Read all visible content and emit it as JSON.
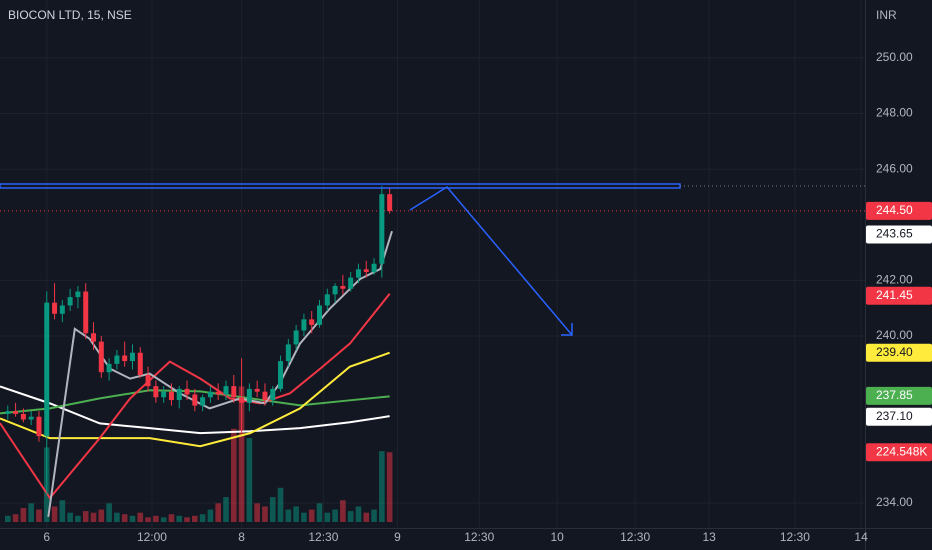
{
  "chart_data": {
    "type": "candlestick",
    "title": "BIOCON LTD, 15, NSE",
    "currency": "INR",
    "up_color": "#089981",
    "down_color": "#f23645",
    "xlim": [
      -1,
      110
    ],
    "xticks": [
      {
        "value": 5,
        "label": "6"
      },
      {
        "value": 18.5,
        "label": "12:00"
      },
      {
        "value": 30,
        "label": "8"
      },
      {
        "value": 40.5,
        "label": "12:30"
      },
      {
        "value": 50,
        "label": "9"
      },
      {
        "value": 60.5,
        "label": "12:30"
      },
      {
        "value": 70.5,
        "label": "10"
      },
      {
        "value": 80.5,
        "label": "12:30"
      },
      {
        "value": 90,
        "label": "13"
      },
      {
        "value": 101,
        "label": "12:30"
      },
      {
        "value": 109.5,
        "label": "14"
      }
    ],
    "ylim": [
      233.1,
      252.08
    ],
    "yticks": [
      {
        "value": 250,
        "label": "250.00"
      },
      {
        "value": 248,
        "label": "248.00"
      },
      {
        "value": 246,
        "label": "246.00"
      },
      {
        "value": 242,
        "label": "242.00"
      },
      {
        "value": 240,
        "label": "240.00"
      },
      {
        "value": 234,
        "label": "234.00"
      }
    ],
    "grid": true,
    "open": [
      237.2,
      237.3,
      237.2,
      237.0,
      237.1,
      236.4,
      241.2,
      240.8,
      241.1,
      241.4,
      241.6,
      240.1,
      239.8,
      238.7,
      239.0,
      239.3,
      239.1,
      239.4,
      238.6,
      238.2,
      237.8,
      238.0,
      237.7,
      238.1,
      237.9,
      237.5,
      237.8,
      238.0,
      237.9,
      238.2,
      237.8,
      237.6,
      238.1,
      238.0,
      237.7,
      238.1,
      239.1,
      239.7,
      240.2,
      240.6,
      240.4,
      241.1,
      241.5,
      241.8,
      241.7,
      242.1,
      242.4,
      242.3,
      242.6,
      245.1
    ],
    "high": [
      237.5,
      237.6,
      237.4,
      237.3,
      237.3,
      241.6,
      241.9,
      241.3,
      241.7,
      241.8,
      241.9,
      240.5,
      240.0,
      239.2,
      239.5,
      239.8,
      239.7,
      239.6,
      238.9,
      238.4,
      238.2,
      238.3,
      238.2,
      238.4,
      238.1,
      237.9,
      238.2,
      238.3,
      238.4,
      238.6,
      239.2,
      238.3,
      238.4,
      238.3,
      238.2,
      239.3,
      239.9,
      240.4,
      240.8,
      240.9,
      241.3,
      241.7,
      241.9,
      242.2,
      242.3,
      242.6,
      242.7,
      242.8,
      245.4,
      245.35
    ],
    "low": [
      237.0,
      237.1,
      236.9,
      236.8,
      236.2,
      234.3,
      240.6,
      240.5,
      240.9,
      241.0,
      239.9,
      239.5,
      238.5,
      238.4,
      238.8,
      238.9,
      238.8,
      238.5,
      238.0,
      237.6,
      237.6,
      237.5,
      237.4,
      237.7,
      237.3,
      237.3,
      237.6,
      237.7,
      237.7,
      237.6,
      236.5,
      237.3,
      237.8,
      237.5,
      237.5,
      238.0,
      238.9,
      239.5,
      240.0,
      240.1,
      240.3,
      240.9,
      241.2,
      241.5,
      241.6,
      241.9,
      242.1,
      242.2,
      242.1,
      244.4
    ],
    "close": [
      237.3,
      237.2,
      237.0,
      237.1,
      236.4,
      241.2,
      240.8,
      241.1,
      241.4,
      241.6,
      240.1,
      239.8,
      238.7,
      239.0,
      239.3,
      239.1,
      239.4,
      238.6,
      238.2,
      237.8,
      238.0,
      237.7,
      238.1,
      237.9,
      237.5,
      237.8,
      238.0,
      237.9,
      238.2,
      237.8,
      237.6,
      238.1,
      238.0,
      237.7,
      238.1,
      239.1,
      239.7,
      240.2,
      240.6,
      240.4,
      241.1,
      241.5,
      241.8,
      241.7,
      242.1,
      242.4,
      242.3,
      242.6,
      245.1,
      244.5
    ],
    "volume": [
      20000,
      25000,
      45000,
      60000,
      40000,
      240000,
      50000,
      70000,
      30000,
      20000,
      35000,
      30000,
      40000,
      60000,
      30000,
      25000,
      20000,
      30000,
      15000,
      20000,
      15000,
      25000,
      20000,
      15000,
      20000,
      25000,
      40000,
      60000,
      80000,
      300000,
      436000,
      270000,
      60000,
      50000,
      80000,
      110000,
      40000,
      50000,
      30000,
      40000,
      60000,
      30000,
      40000,
      70000,
      35000,
      50000,
      30000,
      40000,
      228000,
      224548
    ],
    "volume_lim": [
      0,
      740000
    ],
    "volume_label": "224.548K",
    "ma": [
      {
        "color": "#ffffff",
        "x": [
          -1,
          5.4,
          11.8,
          18.2,
          24.7,
          31.1,
          37.5,
          43.9,
          49
        ],
        "values": [
          238.19,
          237.58,
          236.86,
          236.69,
          236.51,
          236.58,
          236.69,
          236.9,
          237.12
        ]
      },
      {
        "color": "#4caf50",
        "x": [
          -1,
          5.4,
          11.8,
          18.2,
          24.7,
          31.1,
          37.5,
          43.9,
          49
        ],
        "values": [
          237.22,
          237.4,
          237.76,
          238.05,
          238.01,
          237.76,
          237.51,
          237.69,
          237.83
        ]
      },
      {
        "color": "#ffeb3b",
        "x": [
          -1,
          5.4,
          11.8,
          18.2,
          24.7,
          31.1,
          37.5,
          43.9,
          49
        ],
        "values": [
          237.04,
          236.33,
          236.33,
          236.33,
          236.04,
          236.51,
          237.4,
          238.9,
          239.4
        ]
      },
      {
        "color": "#f23645",
        "x": [
          -1,
          5.4,
          11.8,
          15.7,
          20.8,
          24.7,
          28.5,
          32.4,
          36.2,
          40.1,
          43.9,
          49
        ],
        "values": [
          236.87,
          234.18,
          236.33,
          237.76,
          239.08,
          238.47,
          237.76,
          237.58,
          237.94,
          238.83,
          239.73,
          241.52
        ]
      },
      {
        "color": "#b2b5be",
        "x": [
          5.2,
          8.6,
          10.5,
          13.1,
          15.7,
          18.2,
          22.1,
          25.9,
          29.8,
          33,
          34.9,
          37.5,
          41.3,
          45.2,
          47.8,
          49.3
        ],
        "values": [
          233.5,
          240.26,
          239.9,
          238.83,
          238.47,
          238.65,
          237.94,
          237.4,
          237.76,
          237.58,
          238.3,
          239.73,
          240.98,
          242.05,
          242.41,
          243.77
        ]
      }
    ],
    "price_labels": [
      {
        "value": 244.5,
        "label": "244.50",
        "color": "#f23645",
        "text_color": "#ffffff"
      },
      {
        "value": 243.65,
        "label": "243.65",
        "color": "#ffffff",
        "text_color": "#131722"
      },
      {
        "value": 241.45,
        "label": "241.45",
        "color": "#f23645",
        "text_color": "#ffffff"
      },
      {
        "value": 239.4,
        "label": "239.40",
        "color": "#ffeb3b",
        "text_color": "#131722"
      },
      {
        "value": 237.85,
        "label": "237.85",
        "color": "#4caf50",
        "text_color": "#ffffff"
      },
      {
        "value": 237.1,
        "label": "237.10",
        "color": "#ffffff",
        "text_color": "#131722"
      }
    ]
  }
}
